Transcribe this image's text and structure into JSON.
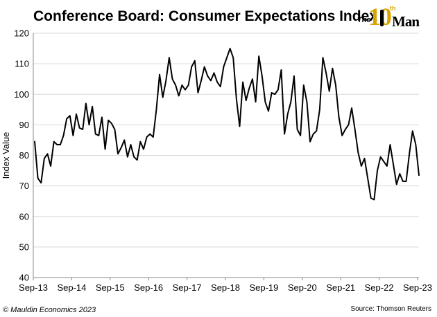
{
  "header": {
    "title": "Conference Board: Consumer Expectations Index",
    "logo": {
      "the": "The",
      "ten": "10",
      "th": "th",
      "man": "Man"
    }
  },
  "footer": {
    "copyright": "© Mauldin Economics 2023",
    "source": "Source: Thomson Reuters"
  },
  "chart_data": {
    "type": "line",
    "title": "Conference Board: Consumer Expectations Index",
    "xlabel": "",
    "ylabel": "Index Value",
    "ylim": [
      40,
      120
    ],
    "yticks": [
      40,
      50,
      60,
      70,
      80,
      90,
      100,
      110,
      120
    ],
    "xticks": [
      "Sep-13",
      "Sep-14",
      "Sep-15",
      "Sep-16",
      "Sep-17",
      "Sep-18",
      "Sep-19",
      "Sep-20",
      "Sep-21",
      "Sep-22",
      "Sep-23"
    ],
    "grid": true,
    "line_color": "#000000",
    "series": [
      {
        "values": [
          84.5,
          72.5,
          71,
          79,
          80.5,
          76.5,
          84.5,
          83.5,
          83.5,
          86.5,
          92,
          93,
          86.5,
          93.5,
          89,
          88.5,
          97,
          90,
          96,
          87,
          86.5,
          92.5,
          82,
          91.5,
          90.5,
          88.5,
          80.5,
          82.5,
          85,
          79.5,
          83.5,
          79.5,
          78.5,
          84.5,
          82,
          86,
          87,
          86,
          95,
          106.5,
          99,
          104.5,
          112,
          105,
          103,
          99.5,
          103,
          101.5,
          103,
          109,
          111,
          100.5,
          104.5,
          109,
          106,
          104.5,
          107,
          104,
          102.5,
          109,
          112,
          115,
          112,
          98.5,
          89.5,
          104,
          98,
          102,
          105,
          97.5,
          112.5,
          106,
          97.5,
          94.5,
          100.5,
          100,
          101.5,
          108,
          87,
          93.5,
          97.5,
          106,
          88.5,
          86.5,
          103,
          97.5,
          84.5,
          87,
          88,
          95,
          112,
          107,
          101,
          108.5,
          103,
          92.5,
          86.5,
          88.5,
          90,
          95.5,
          88.5,
          81,
          76.5,
          79,
          72.5,
          66,
          65.5,
          75,
          79.5,
          78,
          76.5,
          83.5,
          77,
          70.5,
          74,
          71.5,
          71.5,
          80.5,
          88,
          83.5,
          73.5
        ]
      }
    ]
  }
}
